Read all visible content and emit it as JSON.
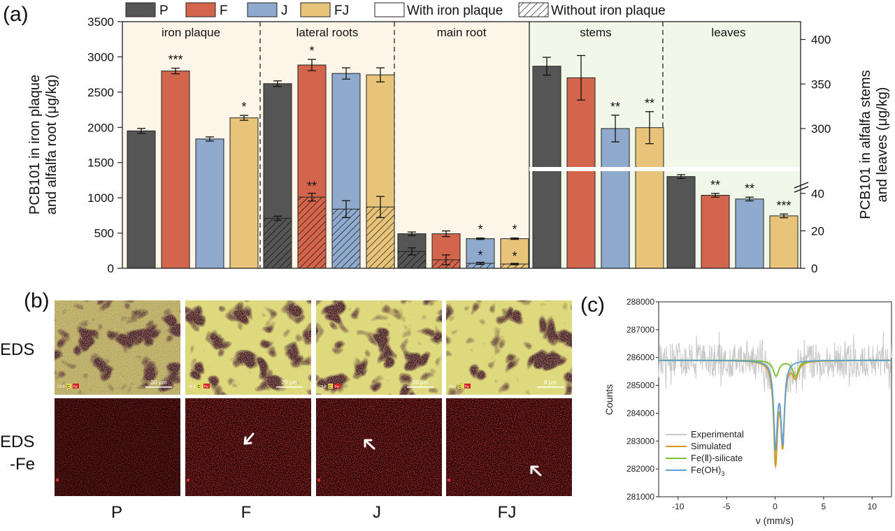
{
  "panel_labels": {
    "a": "(a)",
    "b": "(b)",
    "c": "(c)"
  },
  "colors": {
    "P": "#555555",
    "F": "#d2654b",
    "J": "#90aacd",
    "FJ": "#e8c47a",
    "bg_roots": "#fcf5e8",
    "bg_shoots": "#f1f8ea"
  },
  "legend": {
    "P": "P",
    "F": "F",
    "J": "J",
    "FJ": "FJ",
    "with": "With iron plaque",
    "without": "Without iron plaque"
  },
  "chart_data": [
    {
      "type": "bar",
      "title": "",
      "ylabel_left": "PCB101 in iron plaque and alfalfa root (μg/kg)",
      "ylabel_left_lines": [
        "PCB101 in iron plaque",
        "and alfalfa root (μg/kg)"
      ],
      "ylabel_right": "PCB101 in alfalfa stems and leaves (μg/kg)",
      "ylabel_right_lines": [
        "PCB101 in alfalfa stems",
        "and leaves (μg/kg)"
      ],
      "ylim_left": [
        0,
        3500
      ],
      "yticks_left": [
        "0",
        "500",
        "1000",
        "1500",
        "2000",
        "2500",
        "3000",
        "3500"
      ],
      "yticks_right_upper": [
        "300",
        "350",
        "400"
      ],
      "yticks_right_lower": [
        "0",
        "20",
        "40"
      ],
      "right_axis_break": {
        "lower_range": [
          0,
          50
        ],
        "upper_range": [
          260,
          420
        ]
      },
      "series_names": [
        "P",
        "F",
        "J",
        "FJ"
      ],
      "groups": [
        {
          "name": "iron plaque",
          "axis": "left",
          "values": [
            1950,
            2800,
            1835,
            2135
          ],
          "errors": [
            35,
            40,
            30,
            35
          ],
          "stars": [
            "",
            "***",
            "",
            "*"
          ]
        },
        {
          "name": "lateral roots",
          "axis": "left",
          "values": [
            2620,
            2885,
            2765,
            2745
          ],
          "errors": [
            40,
            80,
            80,
            100
          ],
          "stars": [
            "",
            "*",
            "",
            ""
          ],
          "hatched_values": [
            710,
            1010,
            840,
            870
          ],
          "hatched_errors": [
            30,
            55,
            120,
            150
          ],
          "hatched_stars": [
            "",
            "**",
            "",
            ""
          ]
        },
        {
          "name": "main root",
          "axis": "left",
          "values": [
            490,
            490,
            420,
            420
          ],
          "errors": [
            25,
            40,
            10,
            10
          ],
          "stars": [
            "",
            "",
            "*",
            "*"
          ],
          "hatched_values": [
            240,
            120,
            70,
            60
          ],
          "hatched_errors": [
            50,
            70,
            15,
            10
          ],
          "hatched_stars": [
            "",
            "",
            "*",
            "*"
          ]
        },
        {
          "name": "stems",
          "axis": "right",
          "values": [
            370,
            357,
            300,
            301
          ],
          "errors": [
            10,
            25,
            15,
            18
          ],
          "stars": [
            "",
            "",
            "**",
            "**"
          ]
        },
        {
          "name": "leaves",
          "axis": "right",
          "values": [
            49,
            39,
            37,
            28
          ],
          "errors": [
            1,
            1,
            1,
            1
          ],
          "stars": [
            "",
            "**",
            "**",
            "***"
          ]
        }
      ]
    },
    {
      "type": "line",
      "title": "",
      "xlabel": "v (mm/s)",
      "ylabel": "Counts",
      "xlim": [
        -12,
        12
      ],
      "ylim": [
        281000,
        288000
      ],
      "xticks": [
        "-10",
        "-5",
        "0",
        "5",
        "10"
      ],
      "yticks": [
        "281000",
        "282000",
        "283000",
        "284000",
        "285000",
        "286000",
        "287000",
        "288000"
      ],
      "baseline": 285900,
      "series": [
        {
          "name": "Experimental",
          "color": "#c8c8c8",
          "noise_amplitude": 600
        },
        {
          "name": "Simulated",
          "color": "#d39a1e",
          "components": [
            "Fe(Ⅱ)-silicate",
            "Fe(OH)3"
          ]
        },
        {
          "name": "Fe(Ⅱ)-silicate",
          "color": "#7ec23a",
          "peaks": [
            {
              "center": 0.1,
              "depth": 560,
              "width": 0.35
            },
            {
              "center": 2.1,
              "depth": 560,
              "width": 0.35
            }
          ]
        },
        {
          "name": "Fe(OH)3",
          "color": "#5d9fd6",
          "peaks": [
            {
              "center": 0.05,
              "depth": 3000,
              "width": 0.22
            },
            {
              "center": 0.78,
              "depth": 2800,
              "width": 0.22
            }
          ]
        }
      ],
      "legend_labels": {
        "experimental": "Experimental",
        "simulated": "Simulated",
        "silicate": "Fe(Ⅱ)-silicate",
        "hydroxide_base": "Fe(OH)",
        "hydroxide_sub": "3"
      }
    }
  ],
  "panel_b": {
    "row_labels": [
      "EDS",
      "EDS",
      "-Fe"
    ],
    "col_labels": [
      "P",
      "F",
      "J",
      "FJ"
    ],
    "scale_bars": [
      "30 μm",
      "20 μm",
      "20 μm",
      "8 μm"
    ],
    "channel_tags": [
      [
        "Ch 0",
        "C",
        "Fe"
      ],
      [
        "Ch 0",
        "C",
        "Fe"
      ],
      [
        "Ch 0",
        "C",
        "Fe"
      ],
      [
        "Ch 0",
        "C",
        "Fe"
      ]
    ]
  }
}
